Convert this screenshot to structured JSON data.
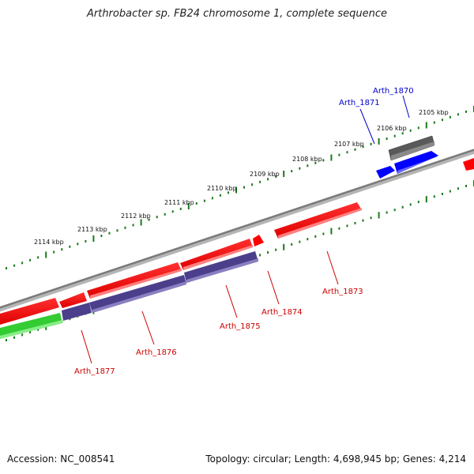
{
  "title": "Arthrobacter sp. FB24 chromosome 1, complete sequence",
  "accession": "Accession: NC_008541",
  "summary": "Topology: circular; Length: 4,698,945 bp; Genes: 4,214",
  "colors": {
    "forward_strand": "#ff0000",
    "reverse_strand": "#ff0000",
    "blue_gene": "#0000ff",
    "purple_cds": "#4b3f8c",
    "gray_feature": "#666666",
    "green_feature": "#33cc33",
    "backbone": "#8c8c8c",
    "tick": "#1a7a1a"
  },
  "scale": {
    "ticks": [
      {
        "label": "2105 kbp"
      },
      {
        "label": "2106 kbp"
      },
      {
        "label": "2107 kbp"
      },
      {
        "label": "2108 kbp"
      },
      {
        "label": "2109 kbp"
      },
      {
        "label": "2110 kbp"
      },
      {
        "label": "2111 kbp"
      },
      {
        "label": "2112 kbp"
      },
      {
        "label": "2113 kbp"
      },
      {
        "label": "2114 kbp"
      }
    ]
  },
  "genes": [
    {
      "label": "Arth_1870",
      "color": "#0000cc"
    },
    {
      "label": "Arth_1871",
      "color": "#0000cc"
    },
    {
      "label": "Arth_1873",
      "color": "#cc0000"
    },
    {
      "label": "Arth_1874",
      "color": "#cc0000"
    },
    {
      "label": "Arth_1875",
      "color": "#cc0000"
    },
    {
      "label": "Arth_1876",
      "color": "#cc0000"
    },
    {
      "label": "Arth_1877",
      "color": "#cc0000"
    }
  ]
}
